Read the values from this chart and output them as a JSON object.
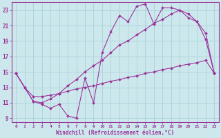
{
  "xlabel": "Windchill (Refroidissement éolien,°C)",
  "background_color": "#cde8ed",
  "grid_color": "#b0d8e0",
  "line_color": "#993399",
  "xlim": [
    -0.5,
    23.5
  ],
  "ylim": [
    8.5,
    24.0
  ],
  "xtick_vals": [
    0,
    1,
    2,
    3,
    4,
    5,
    6,
    7,
    8,
    9,
    10,
    11,
    12,
    13,
    14,
    15,
    16,
    17,
    18,
    19,
    20,
    21,
    22,
    23
  ],
  "ytick_vals": [
    9,
    11,
    13,
    15,
    17,
    19,
    21,
    23
  ],
  "line1_x": [
    0,
    1,
    2,
    3,
    4,
    5,
    6,
    7,
    8,
    9,
    10,
    11,
    12,
    13,
    14,
    15,
    16,
    17,
    18,
    19,
    20,
    21,
    22,
    23
  ],
  "line1_y": [
    14.8,
    13.0,
    11.2,
    10.8,
    10.3,
    10.8,
    9.3,
    9.0,
    14.2,
    11.0,
    17.5,
    20.2,
    22.3,
    21.5,
    23.5,
    23.8,
    21.2,
    23.3,
    23.3,
    23.0,
    22.0,
    21.5,
    19.2,
    14.8
  ],
  "line2_x": [
    0,
    1,
    2,
    3,
    4,
    5,
    6,
    7,
    8,
    9,
    10,
    11,
    12,
    13,
    14,
    15,
    16,
    17,
    18,
    19,
    20,
    21,
    22,
    23
  ],
  "line2_y": [
    14.8,
    13.0,
    11.2,
    11.0,
    11.5,
    12.2,
    13.2,
    14.0,
    15.0,
    15.8,
    16.5,
    17.5,
    18.5,
    19.0,
    19.8,
    20.5,
    21.3,
    21.8,
    22.5,
    23.0,
    22.5,
    21.5,
    20.0,
    14.8
  ],
  "line3_x": [
    0,
    1,
    2,
    3,
    4,
    5,
    6,
    7,
    8,
    9,
    10,
    11,
    12,
    13,
    14,
    15,
    16,
    17,
    18,
    19,
    20,
    21,
    22,
    23
  ],
  "line3_y": [
    14.8,
    13.0,
    11.8,
    11.8,
    12.0,
    12.2,
    12.5,
    12.8,
    13.0,
    13.2,
    13.5,
    13.8,
    14.0,
    14.3,
    14.5,
    14.8,
    15.0,
    15.3,
    15.5,
    15.8,
    16.0,
    16.2,
    16.5,
    14.8
  ]
}
